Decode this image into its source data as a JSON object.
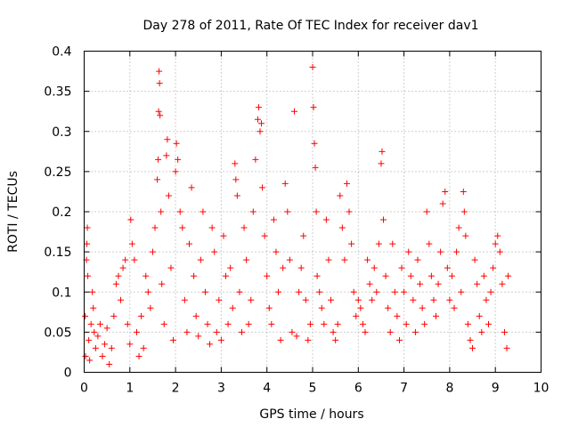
{
  "chart_data": {
    "type": "scatter",
    "title": "Day 278 of 2011, Rate Of TEC Index for receiver dav1",
    "xlabel": "GPS time / hours",
    "ylabel": "ROTI / TECUs",
    "xlim": [
      0,
      10
    ],
    "ylim": [
      0,
      0.4
    ],
    "x_ticks": [
      "0",
      "1",
      "2",
      "3",
      "4",
      "5",
      "6",
      "7",
      "8",
      "9",
      "10"
    ],
    "y_ticks": [
      "0",
      "0.05",
      "0.1",
      "0.15",
      "0.2",
      "0.25",
      "0.3",
      "0.35",
      "0.4"
    ],
    "grid": true,
    "marker": "+",
    "color": "#ff0000",
    "legend": "none",
    "x_range_of_data": [
      0,
      9.3
    ],
    "series": [
      {
        "points": [
          [
            0.02,
            0.07
          ],
          [
            0.03,
            0.02
          ],
          [
            0.05,
            0.14
          ],
          [
            0.06,
            0.16
          ],
          [
            0.07,
            0.18
          ],
          [
            0.08,
            0.12
          ],
          [
            0.1,
            0.04
          ],
          [
            0.12,
            0.015
          ],
          [
            0.15,
            0.06
          ],
          [
            0.18,
            0.1
          ],
          [
            0.2,
            0.08
          ],
          [
            0.22,
            0.05
          ],
          [
            0.25,
            0.03
          ],
          [
            0.3,
            0.045
          ],
          [
            0.35,
            0.06
          ],
          [
            0.4,
            0.02
          ],
          [
            0.45,
            0.035
          ],
          [
            0.5,
            0.055
          ],
          [
            0.55,
            0.01
          ],
          [
            0.6,
            0.03
          ],
          [
            0.65,
            0.07
          ],
          [
            0.7,
            0.11
          ],
          [
            0.75,
            0.12
          ],
          [
            0.8,
            0.09
          ],
          [
            0.85,
            0.13
          ],
          [
            0.9,
            0.14
          ],
          [
            0.95,
            0.06
          ],
          [
            1.0,
            0.035
          ],
          [
            1.02,
            0.19
          ],
          [
            1.05,
            0.16
          ],
          [
            1.1,
            0.14
          ],
          [
            1.15,
            0.05
          ],
          [
            1.2,
            0.02
          ],
          [
            1.25,
            0.07
          ],
          [
            1.3,
            0.03
          ],
          [
            1.35,
            0.12
          ],
          [
            1.4,
            0.1
          ],
          [
            1.45,
            0.08
          ],
          [
            1.5,
            0.15
          ],
          [
            1.55,
            0.18
          ],
          [
            1.6,
            0.24
          ],
          [
            1.62,
            0.265
          ],
          [
            1.63,
            0.325
          ],
          [
            1.64,
            0.375
          ],
          [
            1.65,
            0.36
          ],
          [
            1.66,
            0.32
          ],
          [
            1.68,
            0.2
          ],
          [
            1.7,
            0.11
          ],
          [
            1.75,
            0.06
          ],
          [
            1.8,
            0.27
          ],
          [
            1.82,
            0.29
          ],
          [
            1.85,
            0.22
          ],
          [
            1.9,
            0.13
          ],
          [
            1.95,
            0.04
          ],
          [
            2.0,
            0.25
          ],
          [
            2.02,
            0.285
          ],
          [
            2.05,
            0.265
          ],
          [
            2.1,
            0.2
          ],
          [
            2.15,
            0.18
          ],
          [
            2.2,
            0.09
          ],
          [
            2.25,
            0.05
          ],
          [
            2.3,
            0.16
          ],
          [
            2.35,
            0.23
          ],
          [
            2.4,
            0.12
          ],
          [
            2.45,
            0.07
          ],
          [
            2.5,
            0.045
          ],
          [
            2.55,
            0.14
          ],
          [
            2.6,
            0.2
          ],
          [
            2.65,
            0.1
          ],
          [
            2.7,
            0.06
          ],
          [
            2.75,
            0.035
          ],
          [
            2.8,
            0.18
          ],
          [
            2.85,
            0.15
          ],
          [
            2.9,
            0.05
          ],
          [
            2.95,
            0.09
          ],
          [
            3.0,
            0.04
          ],
          [
            3.05,
            0.17
          ],
          [
            3.1,
            0.12
          ],
          [
            3.15,
            0.06
          ],
          [
            3.2,
            0.13
          ],
          [
            3.25,
            0.08
          ],
          [
            3.3,
            0.26
          ],
          [
            3.32,
            0.24
          ],
          [
            3.35,
            0.22
          ],
          [
            3.4,
            0.1
          ],
          [
            3.45,
            0.05
          ],
          [
            3.5,
            0.18
          ],
          [
            3.55,
            0.14
          ],
          [
            3.6,
            0.06
          ],
          [
            3.65,
            0.09
          ],
          [
            3.7,
            0.2
          ],
          [
            3.75,
            0.265
          ],
          [
            3.8,
            0.315
          ],
          [
            3.82,
            0.33
          ],
          [
            3.85,
            0.3
          ],
          [
            3.88,
            0.31
          ],
          [
            3.9,
            0.23
          ],
          [
            3.95,
            0.17
          ],
          [
            4.0,
            0.12
          ],
          [
            4.05,
            0.08
          ],
          [
            4.1,
            0.06
          ],
          [
            4.15,
            0.19
          ],
          [
            4.2,
            0.15
          ],
          [
            4.25,
            0.1
          ],
          [
            4.3,
            0.04
          ],
          [
            4.35,
            0.13
          ],
          [
            4.4,
            0.235
          ],
          [
            4.45,
            0.2
          ],
          [
            4.5,
            0.14
          ],
          [
            4.55,
            0.05
          ],
          [
            4.6,
            0.325
          ],
          [
            4.65,
            0.045
          ],
          [
            4.7,
            0.1
          ],
          [
            4.75,
            0.13
          ],
          [
            4.8,
            0.17
          ],
          [
            4.85,
            0.09
          ],
          [
            4.9,
            0.04
          ],
          [
            4.95,
            0.06
          ],
          [
            5.0,
            0.38
          ],
          [
            5.02,
            0.33
          ],
          [
            5.04,
            0.285
          ],
          [
            5.06,
            0.255
          ],
          [
            5.08,
            0.2
          ],
          [
            5.1,
            0.12
          ],
          [
            5.15,
            0.1
          ],
          [
            5.2,
            0.08
          ],
          [
            5.25,
            0.06
          ],
          [
            5.3,
            0.19
          ],
          [
            5.35,
            0.14
          ],
          [
            5.4,
            0.09
          ],
          [
            5.45,
            0.05
          ],
          [
            5.5,
            0.04
          ],
          [
            5.55,
            0.06
          ],
          [
            5.6,
            0.22
          ],
          [
            5.65,
            0.18
          ],
          [
            5.7,
            0.14
          ],
          [
            5.75,
            0.235
          ],
          [
            5.8,
            0.2
          ],
          [
            5.85,
            0.16
          ],
          [
            5.9,
            0.1
          ],
          [
            5.95,
            0.07
          ],
          [
            6.0,
            0.09
          ],
          [
            6.05,
            0.08
          ],
          [
            6.1,
            0.06
          ],
          [
            6.15,
            0.05
          ],
          [
            6.2,
            0.14
          ],
          [
            6.25,
            0.11
          ],
          [
            6.3,
            0.09
          ],
          [
            6.35,
            0.13
          ],
          [
            6.4,
            0.1
          ],
          [
            6.45,
            0.16
          ],
          [
            6.5,
            0.26
          ],
          [
            6.52,
            0.275
          ],
          [
            6.55,
            0.19
          ],
          [
            6.6,
            0.12
          ],
          [
            6.65,
            0.08
          ],
          [
            6.7,
            0.05
          ],
          [
            6.75,
            0.16
          ],
          [
            6.8,
            0.1
          ],
          [
            6.85,
            0.07
          ],
          [
            6.9,
            0.04
          ],
          [
            6.95,
            0.13
          ],
          [
            7.0,
            0.1
          ],
          [
            7.05,
            0.06
          ],
          [
            7.1,
            0.15
          ],
          [
            7.15,
            0.12
          ],
          [
            7.2,
            0.09
          ],
          [
            7.25,
            0.05
          ],
          [
            7.3,
            0.14
          ],
          [
            7.35,
            0.11
          ],
          [
            7.4,
            0.08
          ],
          [
            7.45,
            0.06
          ],
          [
            7.5,
            0.2
          ],
          [
            7.55,
            0.16
          ],
          [
            7.6,
            0.12
          ],
          [
            7.65,
            0.09
          ],
          [
            7.7,
            0.07
          ],
          [
            7.75,
            0.11
          ],
          [
            7.8,
            0.15
          ],
          [
            7.85,
            0.21
          ],
          [
            7.9,
            0.225
          ],
          [
            7.95,
            0.13
          ],
          [
            8.0,
            0.09
          ],
          [
            8.05,
            0.12
          ],
          [
            8.1,
            0.08
          ],
          [
            8.15,
            0.15
          ],
          [
            8.2,
            0.18
          ],
          [
            8.25,
            0.1
          ],
          [
            8.3,
            0.225
          ],
          [
            8.32,
            0.2
          ],
          [
            8.35,
            0.17
          ],
          [
            8.4,
            0.06
          ],
          [
            8.45,
            0.04
          ],
          [
            8.5,
            0.03
          ],
          [
            8.55,
            0.14
          ],
          [
            8.6,
            0.11
          ],
          [
            8.65,
            0.07
          ],
          [
            8.7,
            0.05
          ],
          [
            8.75,
            0.12
          ],
          [
            8.8,
            0.09
          ],
          [
            8.85,
            0.06
          ],
          [
            8.9,
            0.1
          ],
          [
            8.95,
            0.13
          ],
          [
            9.0,
            0.16
          ],
          [
            9.05,
            0.17
          ],
          [
            9.1,
            0.15
          ],
          [
            9.15,
            0.11
          ],
          [
            9.2,
            0.05
          ],
          [
            9.25,
            0.03
          ],
          [
            9.28,
            0.12
          ]
        ]
      }
    ]
  }
}
